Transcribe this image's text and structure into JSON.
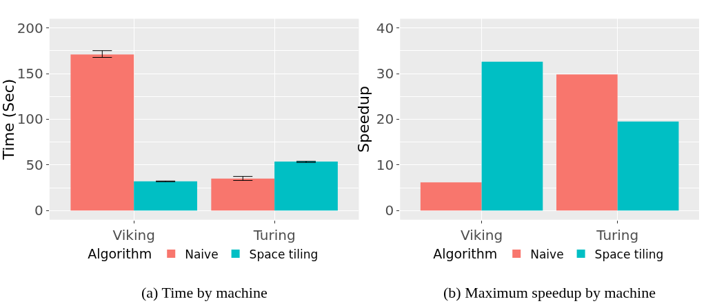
{
  "chart_data": [
    {
      "type": "bar",
      "ylabel": "Time (Sec)",
      "categories": [
        "Viking",
        "Turing"
      ],
      "legend_title": "Algorithm",
      "legend": "bottom",
      "grid": true,
      "ylim": [
        -10,
        210
      ],
      "yticks": [
        0,
        50,
        100,
        150,
        200
      ],
      "annotations": [
        "(a) Time by machine"
      ],
      "series": [
        {
          "name": "Naive",
          "color": "#f8766d",
          "values": [
            171,
            35
          ],
          "errors": [
            [
              167.7,
              175.1
            ],
            [
              33,
              37.4
            ]
          ]
        },
        {
          "name": "Space tiling",
          "color": "#00bfc4",
          "values": [
            32,
            53.6
          ],
          "errors": [
            [
              31.6,
              32.4
            ],
            [
              52.6,
              54
            ]
          ]
        }
      ]
    },
    {
      "type": "bar",
      "ylabel": "Speedup",
      "categories": [
        "Viking",
        "Turing"
      ],
      "legend_title": "Algorithm",
      "legend": "bottom",
      "grid": true,
      "ylim": [
        -2,
        42
      ],
      "yticks": [
        0,
        10,
        20,
        30,
        40
      ],
      "annotations": [
        "(b) Maximum speedup by machine"
      ],
      "series": [
        {
          "name": "Naive",
          "color": "#f8766d",
          "values": [
            6.2,
            29.8
          ]
        },
        {
          "name": "Space tiling",
          "color": "#00bfc4",
          "values": [
            32.6,
            19.5
          ]
        }
      ]
    }
  ]
}
